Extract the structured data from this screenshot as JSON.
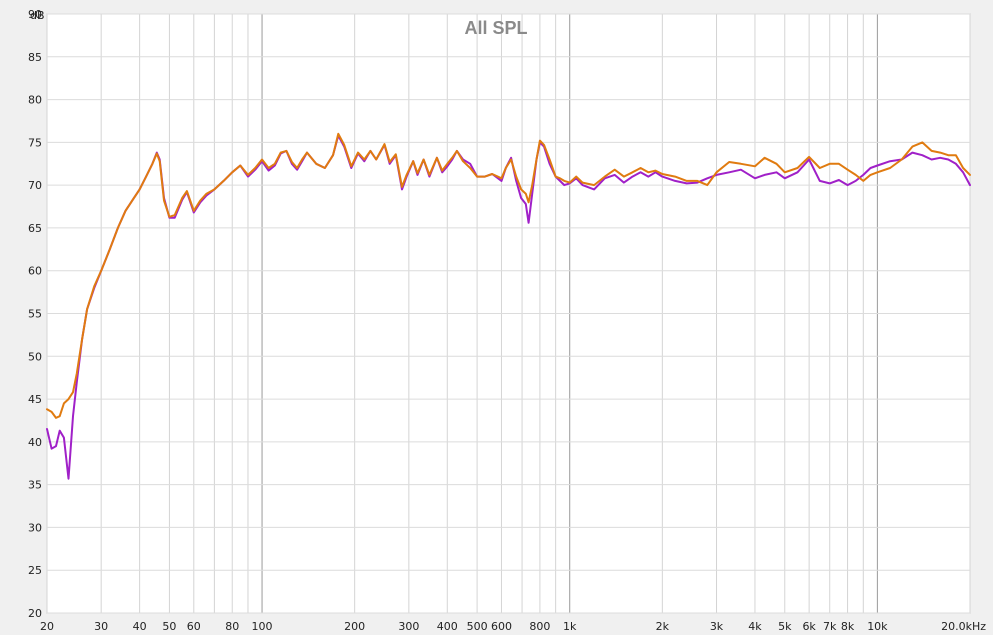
{
  "chart_data": {
    "type": "line",
    "title": "All SPL",
    "ylabel": "dB",
    "xunit_suffix": "kHz",
    "x_scale": "log",
    "xlim": [
      20,
      20000
    ],
    "ylim": [
      20,
      90
    ],
    "grid": true,
    "colors": {
      "background": "#ffffff",
      "frame": "#f0f0f0",
      "grid_minor": "#d4d4d4",
      "grid_major": "#9a9a9a",
      "grid_h": "#dcdcdc"
    },
    "y_ticks": [
      20,
      25,
      30,
      35,
      40,
      45,
      50,
      55,
      60,
      65,
      70,
      75,
      80,
      85,
      90
    ],
    "x_ticks": [
      {
        "v": 20,
        "label": "20"
      },
      {
        "v": 30,
        "label": "30"
      },
      {
        "v": 40,
        "label": "40"
      },
      {
        "v": 50,
        "label": "50"
      },
      {
        "v": 60,
        "label": "60"
      },
      {
        "v": 80,
        "label": "80"
      },
      {
        "v": 100,
        "label": "100"
      },
      {
        "v": 200,
        "label": "200"
      },
      {
        "v": 300,
        "label": "300"
      },
      {
        "v": 400,
        "label": "400"
      },
      {
        "v": 500,
        "label": "500"
      },
      {
        "v": 600,
        "label": "600"
      },
      {
        "v": 800,
        "label": "800"
      },
      {
        "v": 1000,
        "label": "1k"
      },
      {
        "v": 2000,
        "label": "2k"
      },
      {
        "v": 3000,
        "label": "3k"
      },
      {
        "v": 4000,
        "label": "4k"
      },
      {
        "v": 5000,
        "label": "5k"
      },
      {
        "v": 6000,
        "label": "6k"
      },
      {
        "v": 7000,
        "label": "7k"
      },
      {
        "v": 8000,
        "label": "8k"
      },
      {
        "v": 10000,
        "label": "10k"
      },
      {
        "v": 20000,
        "label": "20.0kHz"
      }
    ],
    "series": [
      {
        "color": "#a020c8",
        "points": [
          [
            20,
            41.5
          ],
          [
            20.7,
            39.2
          ],
          [
            21.4,
            39.5
          ],
          [
            22,
            41.3
          ],
          [
            22.7,
            40.5
          ],
          [
            23.5,
            35.7
          ],
          [
            24.3,
            43
          ],
          [
            25,
            47
          ],
          [
            26,
            52
          ],
          [
            27,
            55.5
          ],
          [
            28.5,
            58
          ],
          [
            30,
            60
          ],
          [
            32,
            62.5
          ],
          [
            34,
            65
          ],
          [
            36,
            67
          ],
          [
            38,
            68.3
          ],
          [
            40,
            69.5
          ],
          [
            42,
            71
          ],
          [
            44,
            72.5
          ],
          [
            45.5,
            73.8
          ],
          [
            46.5,
            73
          ],
          [
            48,
            68.5
          ],
          [
            50,
            66.2
          ],
          [
            52,
            66.2
          ],
          [
            55,
            68.3
          ],
          [
            57,
            69.2
          ],
          [
            60,
            66.8
          ],
          [
            63,
            68
          ],
          [
            66,
            68.8
          ],
          [
            70,
            69.5
          ],
          [
            75,
            70.5
          ],
          [
            80,
            71.5
          ],
          [
            85,
            72.3
          ],
          [
            90,
            71
          ],
          [
            95,
            71.8
          ],
          [
            100,
            72.8
          ],
          [
            105,
            71.7
          ],
          [
            110,
            72.3
          ],
          [
            115,
            73.7
          ],
          [
            120,
            74
          ],
          [
            125,
            72.5
          ],
          [
            130,
            71.8
          ],
          [
            135,
            72.8
          ],
          [
            140,
            73.8
          ],
          [
            150,
            72.5
          ],
          [
            160,
            72
          ],
          [
            170,
            73.5
          ],
          [
            177,
            75.8
          ],
          [
            185,
            74.5
          ],
          [
            195,
            72
          ],
          [
            205,
            73.7
          ],
          [
            215,
            72.8
          ],
          [
            225,
            74
          ],
          [
            235,
            73
          ],
          [
            250,
            74.7
          ],
          [
            260,
            72.5
          ],
          [
            272,
            73.5
          ],
          [
            285,
            69.5
          ],
          [
            295,
            71
          ],
          [
            310,
            72.8
          ],
          [
            320,
            71.2
          ],
          [
            335,
            73
          ],
          [
            350,
            71
          ],
          [
            370,
            73.2
          ],
          [
            385,
            71.5
          ],
          [
            400,
            72.2
          ],
          [
            415,
            73
          ],
          [
            430,
            74
          ],
          [
            450,
            73
          ],
          [
            475,
            72.5
          ],
          [
            500,
            71
          ],
          [
            530,
            71
          ],
          [
            560,
            71.3
          ],
          [
            600,
            70.5
          ],
          [
            620,
            72
          ],
          [
            645,
            73.2
          ],
          [
            670,
            70.5
          ],
          [
            695,
            68.5
          ],
          [
            720,
            67.8
          ],
          [
            735,
            65.6
          ],
          [
            755,
            69
          ],
          [
            780,
            73
          ],
          [
            800,
            75
          ],
          [
            825,
            74.5
          ],
          [
            860,
            72.5
          ],
          [
            900,
            71
          ],
          [
            930,
            70.5
          ],
          [
            960,
            70
          ],
          [
            1000,
            70.2
          ],
          [
            1050,
            70.8
          ],
          [
            1100,
            70
          ],
          [
            1200,
            69.5
          ],
          [
            1300,
            70.8
          ],
          [
            1400,
            71.2
          ],
          [
            1500,
            70.3
          ],
          [
            1600,
            71
          ],
          [
            1700,
            71.5
          ],
          [
            1800,
            71
          ],
          [
            1900,
            71.5
          ],
          [
            2000,
            71
          ],
          [
            2200,
            70.5
          ],
          [
            2400,
            70.2
          ],
          [
            2600,
            70.3
          ],
          [
            2800,
            70.8
          ],
          [
            3000,
            71.2
          ],
          [
            3300,
            71.5
          ],
          [
            3600,
            71.8
          ],
          [
            4000,
            70.8
          ],
          [
            4300,
            71.2
          ],
          [
            4700,
            71.5
          ],
          [
            5000,
            70.8
          ],
          [
            5500,
            71.5
          ],
          [
            6000,
            73
          ],
          [
            6500,
            70.5
          ],
          [
            7000,
            70.2
          ],
          [
            7500,
            70.6
          ],
          [
            8000,
            70
          ],
          [
            8500,
            70.5
          ],
          [
            9000,
            71.2
          ],
          [
            9500,
            72
          ],
          [
            10000,
            72.3
          ],
          [
            11000,
            72.8
          ],
          [
            12000,
            73
          ],
          [
            13000,
            73.8
          ],
          [
            14000,
            73.5
          ],
          [
            15000,
            73
          ],
          [
            16000,
            73.2
          ],
          [
            17000,
            73
          ],
          [
            18000,
            72.5
          ],
          [
            19000,
            71.5
          ],
          [
            20000,
            70
          ]
        ]
      },
      {
        "color": "#e07b10",
        "points": [
          [
            20,
            43.8
          ],
          [
            20.7,
            43.5
          ],
          [
            21.4,
            42.8
          ],
          [
            22,
            43
          ],
          [
            22.7,
            44.5
          ],
          [
            23.5,
            45
          ],
          [
            24.3,
            45.8
          ],
          [
            25,
            48
          ],
          [
            26,
            52
          ],
          [
            27,
            55.5
          ],
          [
            28.5,
            58.2
          ],
          [
            30,
            60
          ],
          [
            32,
            62.5
          ],
          [
            34,
            65
          ],
          [
            36,
            67
          ],
          [
            38,
            68.3
          ],
          [
            40,
            69.5
          ],
          [
            42,
            71
          ],
          [
            44,
            72.5
          ],
          [
            45.5,
            73.7
          ],
          [
            46.5,
            72.8
          ],
          [
            48,
            68.2
          ],
          [
            50,
            66.3
          ],
          [
            52,
            66.5
          ],
          [
            55,
            68.5
          ],
          [
            57,
            69.3
          ],
          [
            60,
            67
          ],
          [
            63,
            68.2
          ],
          [
            66,
            69
          ],
          [
            70,
            69.5
          ],
          [
            75,
            70.5
          ],
          [
            80,
            71.5
          ],
          [
            85,
            72.3
          ],
          [
            90,
            71.2
          ],
          [
            95,
            72
          ],
          [
            100,
            73
          ],
          [
            105,
            72
          ],
          [
            110,
            72.5
          ],
          [
            115,
            73.8
          ],
          [
            120,
            74
          ],
          [
            125,
            72.7
          ],
          [
            130,
            72
          ],
          [
            135,
            73
          ],
          [
            140,
            73.8
          ],
          [
            150,
            72.5
          ],
          [
            160,
            72
          ],
          [
            170,
            73.5
          ],
          [
            177,
            76
          ],
          [
            185,
            74.7
          ],
          [
            195,
            72.2
          ],
          [
            205,
            73.8
          ],
          [
            215,
            73
          ],
          [
            225,
            74
          ],
          [
            235,
            73
          ],
          [
            250,
            74.8
          ],
          [
            260,
            72.7
          ],
          [
            272,
            73.6
          ],
          [
            285,
            69.8
          ],
          [
            295,
            71.2
          ],
          [
            310,
            72.8
          ],
          [
            320,
            71.4
          ],
          [
            335,
            73
          ],
          [
            350,
            71.2
          ],
          [
            370,
            73.2
          ],
          [
            385,
            71.7
          ],
          [
            400,
            72.5
          ],
          [
            415,
            73.2
          ],
          [
            430,
            74
          ],
          [
            450,
            72.8
          ],
          [
            475,
            72
          ],
          [
            500,
            71
          ],
          [
            530,
            71
          ],
          [
            560,
            71.3
          ],
          [
            600,
            70.8
          ],
          [
            620,
            72
          ],
          [
            645,
            73
          ],
          [
            670,
            71
          ],
          [
            695,
            69.5
          ],
          [
            720,
            69
          ],
          [
            735,
            68
          ],
          [
            755,
            70
          ],
          [
            780,
            73
          ],
          [
            800,
            75.2
          ],
          [
            825,
            74.7
          ],
          [
            860,
            73
          ],
          [
            900,
            71
          ],
          [
            930,
            70.8
          ],
          [
            960,
            70.5
          ],
          [
            1000,
            70.3
          ],
          [
            1050,
            71
          ],
          [
            1100,
            70.3
          ],
          [
            1200,
            70
          ],
          [
            1300,
            71
          ],
          [
            1400,
            71.8
          ],
          [
            1500,
            71
          ],
          [
            1600,
            71.5
          ],
          [
            1700,
            72
          ],
          [
            1800,
            71.5
          ],
          [
            1900,
            71.7
          ],
          [
            2000,
            71.3
          ],
          [
            2200,
            71
          ],
          [
            2400,
            70.5
          ],
          [
            2600,
            70.5
          ],
          [
            2800,
            70
          ],
          [
            3000,
            71.5
          ],
          [
            3300,
            72.7
          ],
          [
            3600,
            72.5
          ],
          [
            4000,
            72.2
          ],
          [
            4300,
            73.2
          ],
          [
            4700,
            72.5
          ],
          [
            5000,
            71.5
          ],
          [
            5500,
            72
          ],
          [
            6000,
            73.3
          ],
          [
            6500,
            72
          ],
          [
            7000,
            72.5
          ],
          [
            7500,
            72.5
          ],
          [
            8000,
            71.8
          ],
          [
            8500,
            71.2
          ],
          [
            9000,
            70.5
          ],
          [
            9500,
            71.2
          ],
          [
            10000,
            71.5
          ],
          [
            11000,
            72
          ],
          [
            12000,
            73
          ],
          [
            13000,
            74.5
          ],
          [
            14000,
            75
          ],
          [
            15000,
            74
          ],
          [
            16000,
            73.8
          ],
          [
            17000,
            73.5
          ],
          [
            18000,
            73.5
          ],
          [
            19000,
            72
          ],
          [
            20000,
            71.2
          ]
        ]
      }
    ]
  }
}
